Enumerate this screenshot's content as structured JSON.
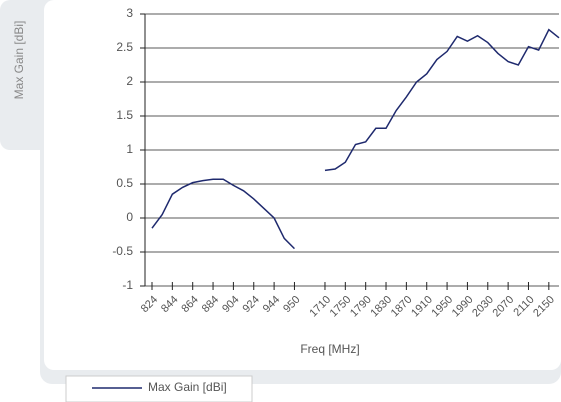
{
  "chart_data": {
    "type": "line",
    "x_label": "Freq [MHz]",
    "y_label": "Max Gain [dBi]",
    "categories": [
      "824",
      null,
      "844",
      null,
      "864",
      null,
      "884",
      null,
      "904",
      null,
      "924",
      null,
      "944",
      null,
      "950",
      null,
      null,
      "1710",
      null,
      "1750",
      null,
      "1790",
      null,
      "1830",
      null,
      "1870",
      null,
      "1910",
      null,
      "1950",
      null,
      "1990",
      null,
      "2030",
      null,
      "2070",
      null,
      "2110",
      null,
      "2150",
      null
    ],
    "series": [
      {
        "name": "Max Gain [dBi]",
        "color": "#1f2a6e",
        "values": [
          -0.15,
          0.05,
          0.35,
          0.45,
          0.52,
          0.55,
          0.57,
          0.57,
          0.48,
          0.4,
          0.28,
          0.14,
          0,
          -0.3,
          -0.45,
          null,
          null,
          0.7,
          0.72,
          0.82,
          1.08,
          1.12,
          1.32,
          1.32,
          1.58,
          1.78,
          2.0,
          2.12,
          2.33,
          2.45,
          2.67,
          2.6,
          2.68,
          2.58,
          2.42,
          2.3,
          2.25,
          2.52,
          2.47,
          2.77,
          2.65
        ]
      }
    ],
    "ylim": [
      -1,
      3
    ],
    "yticks": [
      -1,
      -0.5,
      0,
      0.5,
      1,
      1.5,
      2,
      2.5,
      3
    ],
    "grid": true,
    "legend": "bottom-left"
  }
}
